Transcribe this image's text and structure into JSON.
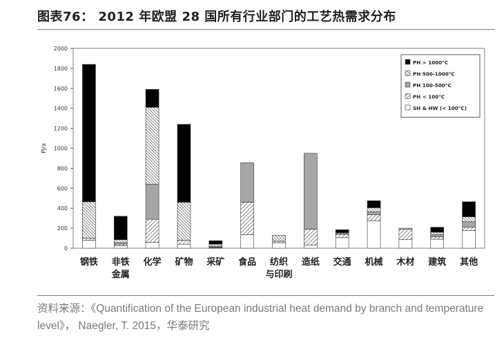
{
  "title": "图表76： 2012 年欧盟 28 国所有行业部门的工艺热需求分布",
  "source": "资料来源：《Quantification of the European industrial heat demand by branch and temperature level》， Naegler, T. 2015，华泰研究",
  "colors": {
    "black": "#000000",
    "gray": "#a6a6a6",
    "hatch": "#555555",
    "white": "#ffffff",
    "rule": "#5b7fa6"
  },
  "chart_data": {
    "type": "bar",
    "stacked": true,
    "title": "",
    "xlabel": "",
    "ylabel": "PJ/a",
    "ylim": [
      0,
      2000
    ],
    "yticks": [
      0,
      200,
      400,
      600,
      800,
      1000,
      1200,
      1400,
      1600,
      1800,
      2000
    ],
    "grid": false,
    "legend_position": "top-right",
    "categories": [
      [
        "钢铁"
      ],
      [
        "非铁",
        "金属"
      ],
      [
        "化学"
      ],
      [
        "矿物"
      ],
      [
        "采矿"
      ],
      [
        "食品"
      ],
      [
        "纺织",
        "与印刷"
      ],
      [
        "造纸"
      ],
      [
        "交通"
      ],
      [
        "机械"
      ],
      [
        "木材"
      ],
      [
        "建筑"
      ],
      [
        "其他"
      ]
    ],
    "series": [
      {
        "name": "SH & HW (< 100°C)",
        "style": "white",
        "values": [
          80,
          25,
          60,
          40,
          5,
          135,
          55,
          30,
          105,
          275,
          85,
          90,
          175
        ]
      },
      {
        "name": "PH < 100°C",
        "style": "hatch-fwd",
        "values": [
          20,
          15,
          230,
          40,
          5,
          325,
          15,
          160,
          35,
          60,
          105,
          25,
          35
        ]
      },
      {
        "name": "PH 100-500°C",
        "style": "gray",
        "values": [
          0,
          15,
          350,
          0,
          10,
          395,
          0,
          760,
          5,
          30,
          0,
          20,
          55
        ]
      },
      {
        "name": "PH 500-1000°C",
        "style": "hatch-back",
        "values": [
          365,
          30,
          770,
          380,
          20,
          0,
          60,
          0,
          10,
          40,
          10,
          25,
          50
        ]
      },
      {
        "name": "PH > 1000°C",
        "style": "black",
        "values": [
          1375,
          235,
          180,
          780,
          35,
          0,
          0,
          0,
          30,
          70,
          0,
          50,
          150
        ]
      }
    ]
  }
}
